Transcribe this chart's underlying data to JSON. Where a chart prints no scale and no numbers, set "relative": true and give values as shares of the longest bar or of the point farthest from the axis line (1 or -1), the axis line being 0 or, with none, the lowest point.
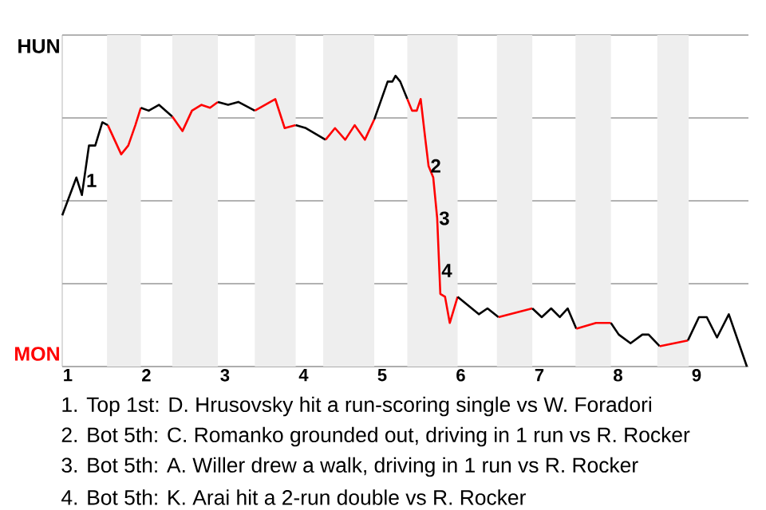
{
  "chart_data": {
    "type": "line",
    "relative": true,
    "xlim": [
      0.93,
      9.66
    ],
    "xticks": [
      1,
      2,
      3,
      4,
      5,
      6,
      7,
      8,
      9
    ],
    "grid": "y",
    "marker": "none",
    "bands": [
      {
        "axis": "x",
        "from": 1.5,
        "to": 1.93,
        "color": "#eeeeee"
      },
      {
        "axis": "x",
        "from": 2.33,
        "to": 2.91,
        "color": "#eeeeee"
      },
      {
        "axis": "x",
        "from": 3.38,
        "to": 3.9,
        "color": "#eeeeee"
      },
      {
        "axis": "x",
        "from": 4.25,
        "to": 4.9,
        "color": "#eeeeee"
      },
      {
        "axis": "x",
        "from": 5.32,
        "to": 5.96,
        "color": "#eeeeee"
      },
      {
        "axis": "x",
        "from": 6.46,
        "to": 6.91,
        "color": "#eeeeee"
      },
      {
        "axis": "x",
        "from": 7.46,
        "to": 7.91,
        "color": "#eeeeee"
      },
      {
        "axis": "x",
        "from": 8.5,
        "to": 8.9,
        "color": "#eeeeee"
      }
    ],
    "series": [
      {
        "color": "#000000",
        "x": [
          0.93,
          1.11,
          1.18,
          1.27,
          1.35,
          1.44,
          1.51
        ],
        "values": [
          0.52,
          0.65,
          0.59,
          0.76,
          0.76,
          0.84,
          0.83
        ]
      },
      {
        "color": "#ff0000",
        "x": [
          1.51,
          1.68,
          1.77,
          1.86,
          1.93
        ],
        "values": [
          0.83,
          0.73,
          0.76,
          0.83,
          0.89
        ]
      },
      {
        "color": "#000000",
        "x": [
          1.93,
          2.03,
          2.16,
          2.33
        ],
        "values": [
          0.89,
          0.88,
          0.9,
          0.86
        ]
      },
      {
        "color": "#ff0000",
        "x": [
          2.33,
          2.46,
          2.58,
          2.7,
          2.81,
          2.91
        ],
        "values": [
          0.86,
          0.81,
          0.88,
          0.9,
          0.89,
          0.91
        ]
      },
      {
        "color": "#000000",
        "x": [
          2.91,
          3.04,
          3.17,
          3.38
        ],
        "values": [
          0.91,
          0.9,
          0.91,
          0.88
        ]
      },
      {
        "color": "#ff0000",
        "x": [
          3.38,
          3.64,
          3.76,
          3.9
        ],
        "values": [
          0.88,
          0.92,
          0.82,
          0.83
        ]
      },
      {
        "color": "#000000",
        "x": [
          3.9,
          4.03,
          4.28
        ],
        "values": [
          0.83,
          0.82,
          0.78
        ]
      },
      {
        "color": "#ff0000",
        "x": [
          4.28,
          4.4,
          4.53,
          4.65,
          4.78,
          4.9
        ],
        "values": [
          0.78,
          0.82,
          0.78,
          0.83,
          0.78,
          0.85
        ]
      },
      {
        "color": "#000000",
        "x": [
          4.9,
          5.07,
          5.13,
          5.17,
          5.23,
          5.32
        ],
        "values": [
          0.85,
          0.98,
          0.98,
          1,
          0.98,
          0.92
        ]
      },
      {
        "color": "#ff0000",
        "x": [
          5.32,
          5.38,
          5.44,
          5.49,
          5.55,
          5.59,
          5.65,
          5.7,
          5.74,
          5.8,
          5.86,
          5.96
        ],
        "values": [
          0.92,
          0.88,
          0.88,
          0.92,
          0.78,
          0.69,
          0.65,
          0.51,
          0.25,
          0.24,
          0.15,
          0.24
        ]
      },
      {
        "color": "#000000",
        "x": [
          5.96,
          6.23,
          6.34,
          6.48
        ],
        "values": [
          0.24,
          0.18,
          0.2,
          0.17
        ]
      },
      {
        "color": "#ff0000",
        "x": [
          6.48,
          6.91
        ],
        "values": [
          0.17,
          0.2
        ]
      },
      {
        "color": "#000000",
        "x": [
          6.91,
          7.03,
          7.15,
          7.26,
          7.36,
          7.47
        ],
        "values": [
          0.2,
          0.17,
          0.2,
          0.17,
          0.2,
          0.13
        ]
      },
      {
        "color": "#ff0000",
        "x": [
          7.47,
          7.72,
          7.91
        ],
        "values": [
          0.13,
          0.15,
          0.15
        ]
      },
      {
        "color": "#000000",
        "x": [
          7.91,
          8.01,
          8.16,
          8.31,
          8.39,
          8.53
        ],
        "values": [
          0.15,
          0.11,
          0.08,
          0.11,
          0.11,
          0.07
        ]
      },
      {
        "color": "#ff0000",
        "x": [
          8.53,
          8.89
        ],
        "values": [
          0.07,
          0.09
        ]
      },
      {
        "color": "#000000",
        "x": [
          8.89,
          9.03,
          9.13,
          9.26,
          9.41,
          9.64
        ],
        "values": [
          0.09,
          0.17,
          0.17,
          0.1,
          0.18,
          0
        ]
      }
    ],
    "annotations": [
      "HUN",
      "MON",
      {
        "text": "1",
        "x": 1.21,
        "y": 0.64
      },
      {
        "text": "2",
        "x": 5.59,
        "y": 0.69
      },
      {
        "text": "3",
        "x": 5.7,
        "y": 0.51
      },
      {
        "text": "4",
        "x": 5.73,
        "y": 0.33
      },
      "1. Top 1st: D. Hrusovsky hit a run-scoring single vs W. Foradori",
      "2. Bot 5th: C. Romanko grounded out, driving in 1 run vs R. Rocker",
      "3. Bot 5th: A. Willer drew a walk, driving in 1 run vs R. Rocker",
      "4. Bot 5th: K. Arai hit a 2-run double vs R. Rocker"
    ]
  }
}
